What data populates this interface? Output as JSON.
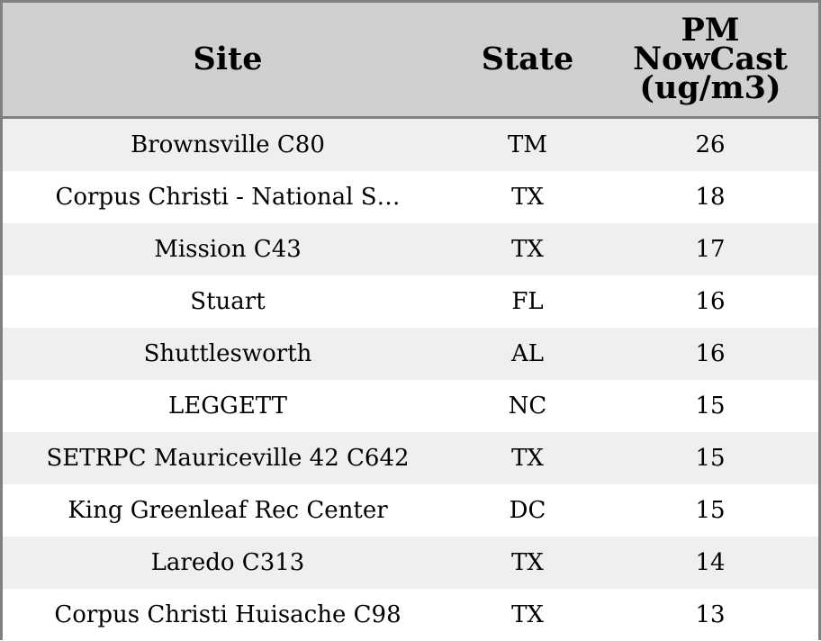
{
  "chart_data": {
    "type": "table",
    "columns": [
      "Site",
      "State",
      "PM NowCast (ug/m3)"
    ],
    "header": {
      "site": "Site",
      "state": "State",
      "pm": "PM NowCast (ug/m3)"
    },
    "rows": [
      {
        "site": "Brownsville C80",
        "state": "TM",
        "pm": "26"
      },
      {
        "site": "Corpus Christi - National S…",
        "state": "TX",
        "pm": "18"
      },
      {
        "site": "Mission C43",
        "state": "TX",
        "pm": "17"
      },
      {
        "site": "Stuart",
        "state": "FL",
        "pm": "16"
      },
      {
        "site": "Shuttlesworth",
        "state": "AL",
        "pm": "16"
      },
      {
        "site": "LEGGETT",
        "state": "NC",
        "pm": "15"
      },
      {
        "site": "SETRPC Mauriceville 42 C642",
        "state": "TX",
        "pm": "15"
      },
      {
        "site": "King Greenleaf Rec Center",
        "state": "DC",
        "pm": "15"
      },
      {
        "site": "Laredo C313",
        "state": "TX",
        "pm": "14"
      },
      {
        "site": "Corpus Christi Huisache C98",
        "state": "TX",
        "pm": "13"
      }
    ],
    "colors": {
      "header_background": "#d0d0d0",
      "stripe_background": "#efefef",
      "row_background": "#ffffff",
      "border": "#808080"
    }
  }
}
